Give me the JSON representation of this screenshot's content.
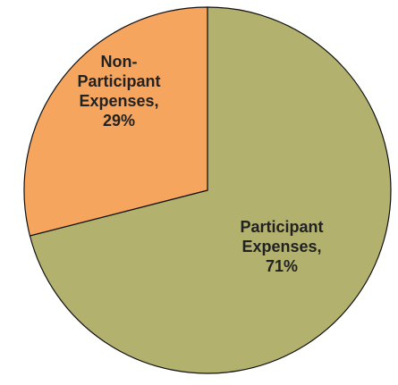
{
  "chart_data": {
    "type": "pie",
    "title": "",
    "start_angle_deg": 0,
    "direction": "clockwise",
    "slices": [
      {
        "category": "Participant Expenses",
        "value": 71,
        "color": "#b3b16e",
        "label_lines": [
          "Participant",
          "Expenses,",
          "71%"
        ]
      },
      {
        "category": "Non-Participant Expenses",
        "value": 29,
        "color": "#f6a55f",
        "label_lines": [
          "Non-",
          "Participant",
          "Expenses,",
          "29%"
        ]
      }
    ]
  }
}
